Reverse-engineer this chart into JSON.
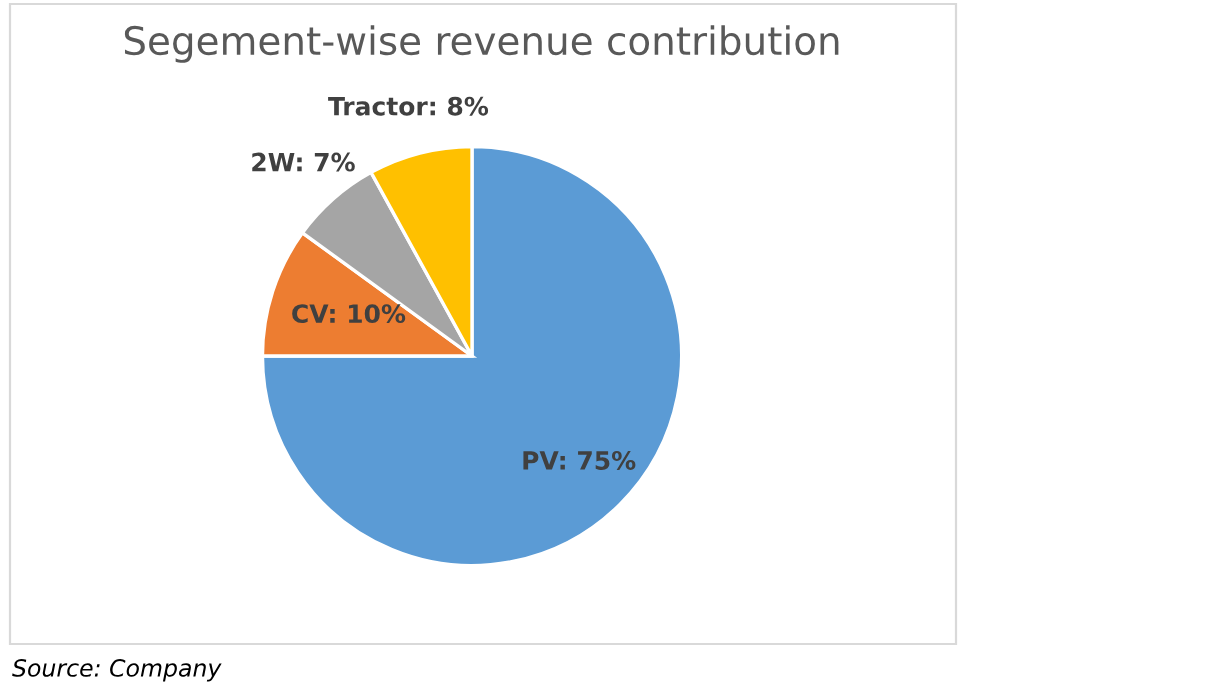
{
  "chart_data": {
    "type": "pie",
    "title": "Segement-wise revenue contribution",
    "categories": [
      "PV",
      "CV",
      "2W",
      "Tractor"
    ],
    "values": [
      75,
      10,
      7,
      8
    ],
    "colors": [
      "#5b9bd5",
      "#ed7d31",
      "#a5a5a5",
      "#ffc000"
    ],
    "value_labels": [
      "75%",
      "10%",
      "7%",
      "8%"
    ],
    "legend": false,
    "annotations": [
      "Source: Company"
    ]
  }
}
